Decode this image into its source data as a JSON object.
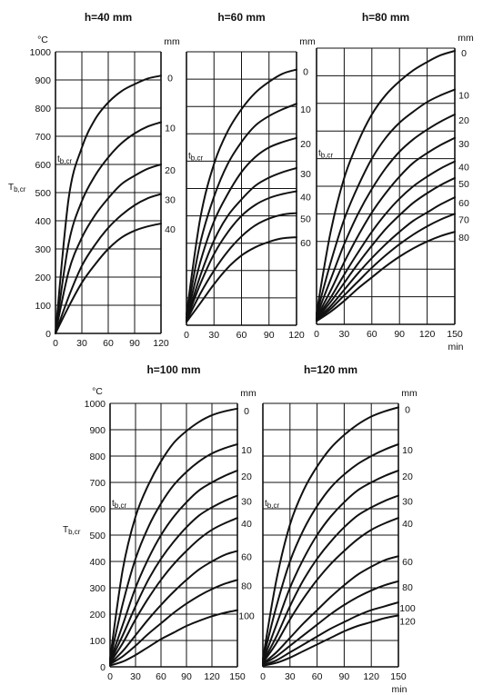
{
  "chart_data": [
    {
      "type": "line",
      "title": "h=40 mm",
      "x": [
        0,
        15,
        30,
        45,
        60,
        75,
        90,
        105,
        120
      ],
      "xticks": [
        "0",
        "30",
        "60",
        "90",
        "120"
      ],
      "xlim": [
        0,
        120
      ],
      "ylim": [
        0,
        1000
      ],
      "yticks": [
        "0",
        "100",
        "200",
        "300",
        "400",
        "500",
        "600",
        "700",
        "800",
        "900",
        "1000"
      ],
      "ylabel": "T",
      "ylabel_sub": "b,cr",
      "yunit": "°C",
      "curve_unit": "mm",
      "annotation": "t",
      "annotation_sub": "b,cr",
      "series": [
        {
          "name": "0",
          "values": [
            0,
            480,
            660,
            760,
            820,
            860,
            885,
            905,
            915
          ]
        },
        {
          "name": "10",
          "values": [
            0,
            320,
            470,
            560,
            625,
            675,
            710,
            735,
            750
          ]
        },
        {
          "name": "20",
          "values": [
            0,
            220,
            340,
            420,
            480,
            530,
            560,
            585,
            600
          ]
        },
        {
          "name": "30",
          "values": [
            0,
            130,
            240,
            315,
            375,
            420,
            455,
            480,
            495
          ]
        },
        {
          "name": "40",
          "values": [
            0,
            95,
            180,
            245,
            300,
            340,
            365,
            380,
            390
          ]
        }
      ]
    },
    {
      "type": "line",
      "title": "h=60 mm",
      "x": [
        0,
        15,
        30,
        45,
        60,
        75,
        90,
        105,
        120
      ],
      "xticks": [
        "0",
        "30",
        "60",
        "90",
        "120"
      ],
      "xlim": [
        0,
        120
      ],
      "ylim": [
        0,
        1000
      ],
      "yunit": "",
      "curve_unit": "mm",
      "annotation": "t",
      "annotation_sub": "b,cr",
      "series": [
        {
          "name": "0",
          "values": [
            40,
            390,
            590,
            710,
            790,
            850,
            890,
            920,
            935
          ]
        },
        {
          "name": "10",
          "values": [
            30,
            300,
            470,
            590,
            670,
            730,
            765,
            790,
            810
          ]
        },
        {
          "name": "20",
          "values": [
            25,
            230,
            380,
            480,
            560,
            615,
            650,
            670,
            685
          ]
        },
        {
          "name": "30",
          "values": [
            20,
            180,
            310,
            400,
            460,
            510,
            540,
            560,
            575
          ]
        },
        {
          "name": "40",
          "values": [
            18,
            150,
            260,
            340,
            400,
            440,
            465,
            480,
            490
          ]
        },
        {
          "name": "50",
          "values": [
            15,
            115,
            200,
            270,
            325,
            365,
            390,
            405,
            410
          ]
        },
        {
          "name": "60",
          "values": [
            12,
            80,
            150,
            210,
            255,
            285,
            305,
            318,
            322
          ]
        }
      ]
    },
    {
      "type": "line",
      "title": "h=80 mm",
      "x": [
        0,
        15,
        30,
        45,
        60,
        75,
        90,
        105,
        120,
        135,
        150
      ],
      "xticks": [
        "0",
        "30",
        "60",
        "90",
        "120",
        "150"
      ],
      "xlim": [
        0,
        150
      ],
      "ylim": [
        0,
        1000
      ],
      "yunit": "",
      "xunit": "min",
      "curve_unit": "mm",
      "annotation": "t",
      "annotation_sub": "b,cr",
      "series": [
        {
          "name": "0",
          "values": [
            40,
            330,
            530,
            660,
            760,
            830,
            880,
            920,
            950,
            975,
            990
          ]
        },
        {
          "name": "10",
          "values": [
            35,
            220,
            380,
            500,
            600,
            675,
            730,
            770,
            805,
            830,
            850
          ]
        },
        {
          "name": "20",
          "values": [
            30,
            160,
            290,
            400,
            490,
            565,
            625,
            670,
            705,
            735,
            760
          ]
        },
        {
          "name": "30",
          "values": [
            25,
            120,
            225,
            320,
            405,
            475,
            535,
            585,
            620,
            650,
            675
          ]
        },
        {
          "name": "40",
          "values": [
            22,
            95,
            180,
            260,
            335,
            400,
            455,
            500,
            535,
            565,
            590
          ]
        },
        {
          "name": "50",
          "values": [
            20,
            80,
            150,
            220,
            285,
            345,
            395,
            440,
            475,
            505,
            530
          ]
        },
        {
          "name": "60",
          "values": [
            18,
            65,
            125,
            185,
            240,
            290,
            335,
            375,
            405,
            435,
            460
          ]
        },
        {
          "name": "70",
          "values": [
            15,
            55,
            105,
            155,
            205,
            250,
            290,
            325,
            355,
            380,
            400
          ]
        },
        {
          "name": "80",
          "values": [
            12,
            45,
            85,
            130,
            170,
            210,
            245,
            275,
            300,
            320,
            335
          ]
        }
      ]
    },
    {
      "type": "line",
      "title": "h=100 mm",
      "x": [
        0,
        15,
        30,
        45,
        60,
        75,
        90,
        105,
        120,
        135,
        150
      ],
      "xticks": [
        "0",
        "30",
        "60",
        "90",
        "120",
        "150"
      ],
      "xlim": [
        0,
        150
      ],
      "ylim": [
        0,
        1000
      ],
      "yticks": [
        "0",
        "100",
        "200",
        "300",
        "400",
        "500",
        "600",
        "700",
        "800",
        "900",
        "1000"
      ],
      "ylabel": "T",
      "ylabel_sub": "b,cr",
      "yunit": "°C",
      "curve_unit": "mm",
      "annotation": "t",
      "annotation_sub": "b,cr",
      "series": [
        {
          "name": "0",
          "values": [
            30,
            370,
            570,
            690,
            780,
            850,
            895,
            930,
            955,
            970,
            980
          ]
        },
        {
          "name": "10",
          "values": [
            25,
            240,
            410,
            530,
            620,
            690,
            740,
            780,
            810,
            830,
            845
          ]
        },
        {
          "name": "20",
          "values": [
            20,
            160,
            300,
            410,
            500,
            570,
            625,
            670,
            700,
            725,
            745
          ]
        },
        {
          "name": "30",
          "values": [
            18,
            120,
            230,
            330,
            410,
            475,
            530,
            575,
            605,
            630,
            650
          ]
        },
        {
          "name": "40",
          "values": [
            15,
            90,
            180,
            260,
            330,
            390,
            440,
            485,
            520,
            545,
            565
          ]
        },
        {
          "name": "60",
          "values": [
            12,
            60,
            120,
            180,
            235,
            285,
            330,
            370,
            400,
            425,
            440
          ]
        },
        {
          "name": "80",
          "values": [
            10,
            40,
            80,
            125,
            165,
            205,
            240,
            270,
            295,
            315,
            330
          ]
        },
        {
          "name": "100",
          "values": [
            5,
            20,
            45,
            75,
            105,
            130,
            155,
            175,
            192,
            205,
            215
          ]
        }
      ]
    },
    {
      "type": "line",
      "title": "h=120 mm",
      "x": [
        0,
        15,
        30,
        45,
        60,
        75,
        90,
        105,
        120,
        135,
        150
      ],
      "xticks": [
        "0",
        "30",
        "60",
        "90",
        "120",
        "150"
      ],
      "xlim": [
        0,
        150
      ],
      "ylim": [
        0,
        1000
      ],
      "yunit": "",
      "xunit": "min",
      "curve_unit": "mm",
      "annotation": "t",
      "annotation_sub": "b,cr",
      "series": [
        {
          "name": "0",
          "values": [
            30,
            330,
            540,
            670,
            760,
            830,
            880,
            920,
            950,
            970,
            985
          ]
        },
        {
          "name": "10",
          "values": [
            25,
            230,
            400,
            520,
            610,
            680,
            730,
            770,
            800,
            825,
            845
          ]
        },
        {
          "name": "20",
          "values": [
            20,
            160,
            300,
            410,
            500,
            570,
            625,
            670,
            700,
            725,
            745
          ]
        },
        {
          "name": "30",
          "values": [
            18,
            115,
            230,
            330,
            410,
            475,
            530,
            575,
            605,
            630,
            650
          ]
        },
        {
          "name": "40",
          "values": [
            15,
            90,
            180,
            260,
            330,
            390,
            440,
            485,
            520,
            545,
            565
          ]
        },
        {
          "name": "60",
          "values": [
            12,
            55,
            110,
            165,
            215,
            265,
            310,
            350,
            380,
            405,
            420
          ]
        },
        {
          "name": "80",
          "values": [
            10,
            40,
            80,
            120,
            160,
            200,
            235,
            265,
            290,
            310,
            325
          ]
        },
        {
          "name": "100",
          "values": [
            6,
            25,
            55,
            85,
            115,
            145,
            170,
            195,
            215,
            230,
            245
          ]
        },
        {
          "name": "120",
          "values": [
            4,
            15,
            35,
            60,
            85,
            110,
            135,
            155,
            170,
            185,
            195
          ]
        }
      ]
    }
  ]
}
